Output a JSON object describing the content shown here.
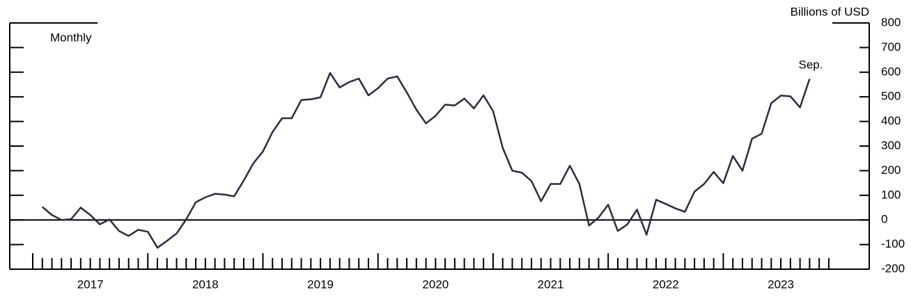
{
  "chart_data": {
    "type": "line",
    "y_label": "Billions of USD",
    "annotations": [
      "Monthly",
      "Sep."
    ],
    "categories": [
      null,
      null,
      null,
      null,
      null,
      null,
      "2017",
      null,
      null,
      null,
      null,
      null,
      null,
      null,
      null,
      null,
      null,
      null,
      "2018",
      null,
      null,
      null,
      null,
      null,
      null,
      null,
      null,
      null,
      null,
      null,
      "2019",
      null,
      null,
      null,
      null,
      null,
      null,
      null,
      null,
      null,
      null,
      null,
      "2020",
      null,
      null,
      null,
      null,
      null,
      null,
      null,
      null,
      null,
      null,
      null,
      "2021",
      null,
      null,
      null,
      null,
      null,
      null,
      null,
      null,
      null,
      null,
      null,
      "2022",
      null,
      null,
      null,
      null,
      null,
      null,
      null,
      null,
      null,
      null,
      null,
      "2023",
      null,
      null,
      null,
      null,
      null
    ],
    "values": [
      53,
      20,
      0,
      3,
      50,
      20,
      -18,
      2,
      -45,
      -65,
      -40,
      -48,
      -113,
      -85,
      -55,
      2,
      72,
      92,
      106,
      103,
      96,
      160,
      230,
      278,
      357,
      413,
      413,
      487,
      490,
      498,
      597,
      538,
      560,
      574,
      506,
      535,
      574,
      583,
      518,
      448,
      392,
      423,
      468,
      465,
      493,
      453,
      506,
      442,
      293,
      200,
      192,
      158,
      76,
      146,
      146,
      220,
      146,
      -23,
      10,
      62,
      -45,
      -18,
      42,
      -60,
      82,
      65,
      47,
      33,
      115,
      146,
      195,
      149,
      260,
      200,
      330,
      350,
      474,
      505,
      502,
      457,
      573,
      null,
      null,
      null
    ],
    "color": "#2b2b3f",
    "ylim": [
      -200,
      800
    ],
    "yticks": [
      -200,
      -100,
      0,
      100,
      200,
      300,
      400,
      500,
      600,
      700,
      800
    ],
    "zero_line": true
  }
}
